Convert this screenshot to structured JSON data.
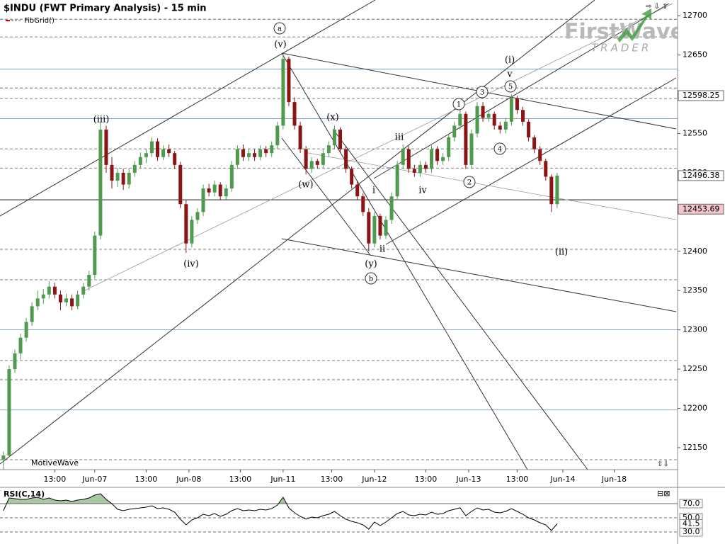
{
  "chart_data": {
    "type": "candlestick",
    "title": "$INDU (FWT Primary Analysis) - 15 min",
    "study": "FibGrid()",
    "watermark": "MotiveWave",
    "logo": {
      "name": "FirstWave",
      "tagline": "TRADER"
    },
    "up_color": "#4f9a4f",
    "down_color": "#8b1414",
    "ylim": [
      12122,
      12720
    ],
    "yticks": [
      12150,
      12200,
      12250,
      12300,
      12350,
      12400,
      12450,
      12500,
      12550,
      12600,
      12650,
      12700
    ],
    "xlim": [
      -0.6,
      118.1
    ],
    "xticks": [
      {
        "value": 9,
        "label": "13:00"
      },
      {
        "value": 16,
        "label": "Jun-07"
      },
      {
        "value": 25,
        "label": "13:00"
      },
      {
        "value": 32.5,
        "label": "Jun-08"
      },
      {
        "value": 41.5,
        "label": "13:00"
      },
      {
        "value": 49,
        "label": "Jun-11"
      },
      {
        "value": 57.5,
        "label": "13:00"
      },
      {
        "value": 65,
        "label": "Jun-12"
      },
      {
        "value": 74,
        "label": "13:00"
      },
      {
        "value": 81.5,
        "label": "Jun-13"
      },
      {
        "value": 90,
        "label": "13:00"
      },
      {
        "value": 98,
        "label": "Jun-14"
      },
      {
        "value": 107,
        "label": "Jun-18"
      }
    ],
    "fib_levels": [
      12695.5,
      12673,
      12608,
      12594.5,
      12530.5,
      12506,
      12402.5,
      12363.7,
      12260.9,
      12236.5,
      12134.6
    ],
    "blue_levels": [
      12632,
      12569,
      12300,
      12198
    ],
    "pivot_level": 12465.6,
    "price_markers": [
      {
        "value": 12598.25,
        "color": "#ffffff"
      },
      {
        "value": 12453.69,
        "color": "#f4c6cc"
      }
    ],
    "candles": [
      [
        12135,
        12145,
        12122,
        12140
      ],
      [
        12140,
        12255,
        12138,
        12250
      ],
      [
        12250,
        12275,
        12245,
        12270
      ],
      [
        12270,
        12295,
        12262,
        12290
      ],
      [
        12290,
        12315,
        12285,
        12310
      ],
      [
        12310,
        12335,
        12305,
        12330
      ],
      [
        12330,
        12350,
        12325,
        12340
      ],
      [
        12340,
        12352,
        12333,
        12345
      ],
      [
        12345,
        12362,
        12340,
        12355
      ],
      [
        12355,
        12360,
        12340,
        12345
      ],
      [
        12345,
        12350,
        12325,
        12335
      ],
      [
        12335,
        12346,
        12330,
        12340
      ],
      [
        12340,
        12345,
        12325,
        12330
      ],
      [
        12330,
        12350,
        12326,
        12345
      ],
      [
        12345,
        12360,
        12340,
        12355
      ],
      [
        12355,
        12375,
        12350,
        12370
      ],
      [
        12370,
        12425,
        12365,
        12420
      ],
      [
        12420,
        12565,
        12415,
        12555
      ],
      [
        12555,
        12560,
        12500,
        12510
      ],
      [
        12510,
        12520,
        12480,
        12490
      ],
      [
        12490,
        12506,
        12482,
        12500
      ],
      [
        12500,
        12505,
        12478,
        12485
      ],
      [
        12485,
        12505,
        12480,
        12500
      ],
      [
        12500,
        12515,
        12495,
        12510
      ],
      [
        12510,
        12526,
        12505,
        12520
      ],
      [
        12520,
        12530,
        12512,
        12525
      ],
      [
        12525,
        12545,
        12520,
        12540
      ],
      [
        12540,
        12544,
        12515,
        12520
      ],
      [
        12520,
        12535,
        12516,
        12530
      ],
      [
        12530,
        12536,
        12520,
        12525
      ],
      [
        12525,
        12528,
        12505,
        12510
      ],
      [
        12510,
        12514,
        12455,
        12460
      ],
      [
        12460,
        12465,
        12398,
        12410
      ],
      [
        12410,
        12445,
        12405,
        12440
      ],
      [
        12440,
        12455,
        12435,
        12450
      ],
      [
        12450,
        12485,
        12445,
        12480
      ],
      [
        12480,
        12486,
        12470,
        12475
      ],
      [
        12475,
        12490,
        12470,
        12485
      ],
      [
        12485,
        12488,
        12465,
        12470
      ],
      [
        12470,
        12485,
        12466,
        12480
      ],
      [
        12480,
        12515,
        12476,
        12510
      ],
      [
        12510,
        12535,
        12505,
        12530
      ],
      [
        12530,
        12536,
        12515,
        12520
      ],
      [
        12520,
        12530,
        12515,
        12525
      ],
      [
        12525,
        12530,
        12515,
        12520
      ],
      [
        12520,
        12535,
        12516,
        12530
      ],
      [
        12530,
        12534,
        12520,
        12525
      ],
      [
        12525,
        12540,
        12520,
        12535
      ],
      [
        12535,
        12565,
        12530,
        12560
      ],
      [
        12560,
        12652,
        12555,
        12645
      ],
      [
        12645,
        12648,
        12585,
        12590
      ],
      [
        12590,
        12596,
        12555,
        12560
      ],
      [
        12560,
        12565,
        12525,
        12530
      ],
      [
        12530,
        12534,
        12498,
        12505
      ],
      [
        12505,
        12520,
        12500,
        12515
      ],
      [
        12515,
        12518,
        12505,
        12510
      ],
      [
        12510,
        12530,
        12506,
        12525
      ],
      [
        12525,
        12540,
        12520,
        12535
      ],
      [
        12535,
        12560,
        12530,
        12555
      ],
      [
        12555,
        12558,
        12525,
        12530
      ],
      [
        12530,
        12534,
        12500,
        12505
      ],
      [
        12505,
        12508,
        12480,
        12485
      ],
      [
        12485,
        12490,
        12465,
        12470
      ],
      [
        12470,
        12474,
        12445,
        12450
      ],
      [
        12450,
        12455,
        12400,
        12410
      ],
      [
        12410,
        12450,
        12405,
        12445
      ],
      [
        12445,
        12448,
        12415,
        12420
      ],
      [
        12420,
        12445,
        12416,
        12440
      ],
      [
        12440,
        12475,
        12435,
        12470
      ],
      [
        12470,
        12515,
        12465,
        12510
      ],
      [
        12510,
        12536,
        12505,
        12530
      ],
      [
        12530,
        12534,
        12500,
        12505
      ],
      [
        12505,
        12510,
        12495,
        12500
      ],
      [
        12500,
        12515,
        12495,
        12510
      ],
      [
        12510,
        12514,
        12500,
        12505
      ],
      [
        12505,
        12535,
        12500,
        12530
      ],
      [
        12530,
        12534,
        12510,
        12515
      ],
      [
        12515,
        12525,
        12510,
        12520
      ],
      [
        12520,
        12550,
        12515,
        12545
      ],
      [
        12545,
        12565,
        12540,
        12560
      ],
      [
        12560,
        12580,
        12555,
        12575
      ],
      [
        12575,
        12578,
        12505,
        12510
      ],
      [
        12510,
        12555,
        12505,
        12550
      ],
      [
        12550,
        12590,
        12545,
        12585
      ],
      [
        12585,
        12590,
        12565,
        12570
      ],
      [
        12570,
        12580,
        12565,
        12575
      ],
      [
        12575,
        12578,
        12555,
        12560
      ],
      [
        12560,
        12565,
        12550,
        12555
      ],
      [
        12555,
        12570,
        12550,
        12565
      ],
      [
        12565,
        12600,
        12560,
        12595
      ],
      [
        12595,
        12598,
        12575,
        12580
      ],
      [
        12580,
        12584,
        12560,
        12565
      ],
      [
        12565,
        12568,
        12540,
        12545
      ],
      [
        12545,
        12548,
        12525,
        12530
      ],
      [
        12530,
        12534,
        12510,
        12515
      ],
      [
        12515,
        12518,
        12490,
        12495
      ],
      [
        12495,
        12498,
        12450,
        12460
      ],
      [
        12460,
        12500,
        12455,
        12496.38
      ]
    ],
    "annotations": [
      "(iii)",
      "(iv)",
      "a",
      "(v)",
      "(x)",
      "(w)",
      "(y)",
      "b",
      "iii",
      "i",
      "ii",
      "iv",
      "(i)",
      "v",
      "1",
      "3",
      "5",
      "4",
      "2",
      "(ii)"
    ],
    "rsi": {
      "title": "RSI(C,14)",
      "color": "#000000",
      "fill": "#a9c9a2",
      "ylim": [
        18,
        91
      ],
      "yticks": [
        {
          "value": 70,
          "label": "70.0"
        },
        {
          "value": 50,
          "label": "50.0"
        },
        {
          "value": 30,
          "label": "30.0"
        }
      ],
      "overbought": 70,
      "values": [
        60,
        78,
        77,
        76,
        76,
        78,
        79,
        76,
        78,
        75,
        74,
        75,
        73,
        75,
        76,
        78,
        82,
        84,
        76,
        70,
        62,
        60,
        62,
        63,
        64,
        65,
        67,
        63,
        64,
        62,
        58,
        48,
        40,
        47,
        50,
        55,
        53,
        56,
        52,
        55,
        60,
        63,
        60,
        61,
        60,
        62,
        61,
        63,
        68,
        79,
        64,
        57,
        52,
        48,
        51,
        50,
        53,
        55,
        59,
        53,
        48,
        45,
        43,
        40,
        34,
        44,
        39,
        44,
        50,
        56,
        59,
        54,
        53,
        55,
        54,
        58,
        55,
        56,
        60,
        62,
        64,
        53,
        59,
        64,
        61,
        62,
        58,
        57,
        59,
        63,
        59,
        55,
        50,
        47,
        43,
        40,
        32,
        41.5
      ]
    }
  }
}
